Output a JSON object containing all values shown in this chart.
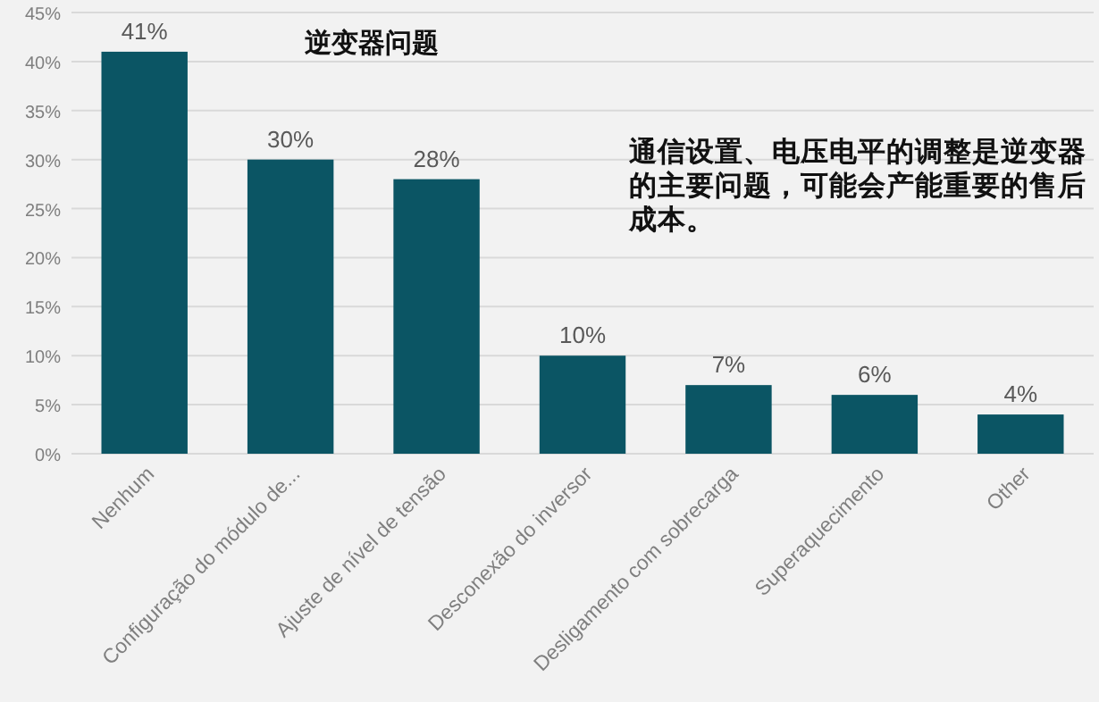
{
  "chart_data": {
    "type": "bar",
    "title": "逆变器问题",
    "categories": [
      "Nenhum",
      "Configuração do módulo de...",
      "Ajuste de nível de tensão",
      "Desconexão do inversor",
      "Desligamento com sobrecarga",
      "Superaquecimento",
      "Other"
    ],
    "values": [
      41,
      30,
      28,
      10,
      7,
      6,
      4
    ],
    "value_labels": [
      "41%",
      "30%",
      "28%",
      "10%",
      "7%",
      "6%",
      "4%"
    ],
    "color": "#0b5564",
    "ylim": [
      0,
      45
    ],
    "yticks": [
      {
        "value": 0,
        "label": "0%"
      },
      {
        "value": 5,
        "label": "5%"
      },
      {
        "value": 10,
        "label": "10%"
      },
      {
        "value": 15,
        "label": "15%"
      },
      {
        "value": 20,
        "label": "20%"
      },
      {
        "value": 25,
        "label": "25%"
      },
      {
        "value": 30,
        "label": "30%"
      },
      {
        "value": 35,
        "label": "35%"
      },
      {
        "value": 40,
        "label": "40%"
      },
      {
        "value": 45,
        "label": "45%"
      }
    ],
    "grid": "y",
    "annotations": [
      "通信设置、电压电平的调整是逆变器的主要问题，可能会产能重要的售后成本。"
    ]
  }
}
